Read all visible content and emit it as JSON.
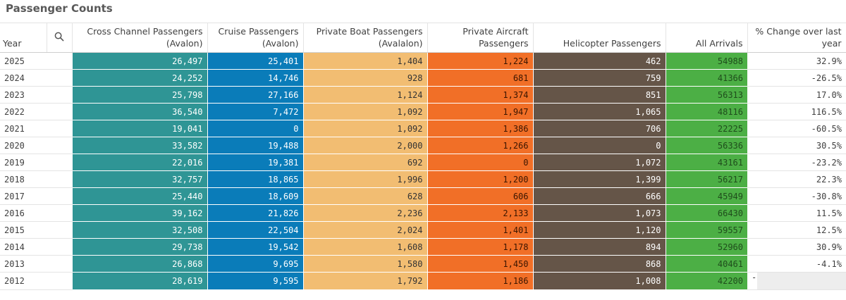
{
  "title": "Passenger Counts",
  "icons": {
    "search": "search-icon"
  },
  "columns": {
    "year": "Year",
    "cross_channel": "Cross Channel Passengers (Avalon)",
    "cruise": "Cruise Passengers (Avalon)",
    "private_boat": "Private Boat Passengers (Avalalon)",
    "private_aircraft": "Private Aircraft Passengers",
    "helicopter": "Helicopter Passengers",
    "all_arrivals": "All Arrivals",
    "pct_change": "% Change over last year"
  },
  "colors": {
    "cross_channel": "#2f9595",
    "cruise": "#0a7cb9",
    "private_boat": "#f2bd72",
    "private_aircraft": "#f16f27",
    "helicopter": "#655548",
    "all_arrivals": "#4caf45"
  },
  "rows": [
    {
      "year": "2025",
      "cross_channel": "26,497",
      "cruise": "25,401",
      "private_boat": "1,404",
      "private_aircraft": "1,224",
      "helicopter": "462",
      "all_arrivals": "54988",
      "pct_change": "32.9%"
    },
    {
      "year": "2024",
      "cross_channel": "24,252",
      "cruise": "14,746",
      "private_boat": "928",
      "private_aircraft": "681",
      "helicopter": "759",
      "all_arrivals": "41366",
      "pct_change": "-26.5%"
    },
    {
      "year": "2023",
      "cross_channel": "25,798",
      "cruise": "27,166",
      "private_boat": "1,124",
      "private_aircraft": "1,374",
      "helicopter": "851",
      "all_arrivals": "56313",
      "pct_change": "17.0%"
    },
    {
      "year": "2022",
      "cross_channel": "36,540",
      "cruise": "7,472",
      "private_boat": "1,092",
      "private_aircraft": "1,947",
      "helicopter": "1,065",
      "all_arrivals": "48116",
      "pct_change": "116.5%"
    },
    {
      "year": "2021",
      "cross_channel": "19,041",
      "cruise": "0",
      "private_boat": "1,092",
      "private_aircraft": "1,386",
      "helicopter": "706",
      "all_arrivals": "22225",
      "pct_change": "-60.5%"
    },
    {
      "year": "2020",
      "cross_channel": "33,582",
      "cruise": "19,488",
      "private_boat": "2,000",
      "private_aircraft": "1,266",
      "helicopter": "0",
      "all_arrivals": "56336",
      "pct_change": "30.5%"
    },
    {
      "year": "2019",
      "cross_channel": "22,016",
      "cruise": "19,381",
      "private_boat": "692",
      "private_aircraft": "0",
      "helicopter": "1,072",
      "all_arrivals": "43161",
      "pct_change": "-23.2%"
    },
    {
      "year": "2018",
      "cross_channel": "32,757",
      "cruise": "18,865",
      "private_boat": "1,996",
      "private_aircraft": "1,200",
      "helicopter": "1,399",
      "all_arrivals": "56217",
      "pct_change": "22.3%"
    },
    {
      "year": "2017",
      "cross_channel": "25,440",
      "cruise": "18,609",
      "private_boat": "628",
      "private_aircraft": "606",
      "helicopter": "666",
      "all_arrivals": "45949",
      "pct_change": "-30.8%"
    },
    {
      "year": "2016",
      "cross_channel": "39,162",
      "cruise": "21,826",
      "private_boat": "2,236",
      "private_aircraft": "2,133",
      "helicopter": "1,073",
      "all_arrivals": "66430",
      "pct_change": "11.5%"
    },
    {
      "year": "2015",
      "cross_channel": "32,508",
      "cruise": "22,504",
      "private_boat": "2,024",
      "private_aircraft": "1,401",
      "helicopter": "1,120",
      "all_arrivals": "59557",
      "pct_change": "12.5%"
    },
    {
      "year": "2014",
      "cross_channel": "29,738",
      "cruise": "19,542",
      "private_boat": "1,608",
      "private_aircraft": "1,178",
      "helicopter": "894",
      "all_arrivals": "52960",
      "pct_change": "30.9%"
    },
    {
      "year": "2013",
      "cross_channel": "26,868",
      "cruise": "9,695",
      "private_boat": "1,580",
      "private_aircraft": "1,450",
      "helicopter": "868",
      "all_arrivals": "40461",
      "pct_change": "-4.1%"
    },
    {
      "year": "2012",
      "cross_channel": "28,619",
      "cruise": "9,595",
      "private_boat": "1,792",
      "private_aircraft": "1,186",
      "helicopter": "1,008",
      "all_arrivals": "42200",
      "pct_change": "-"
    }
  ]
}
